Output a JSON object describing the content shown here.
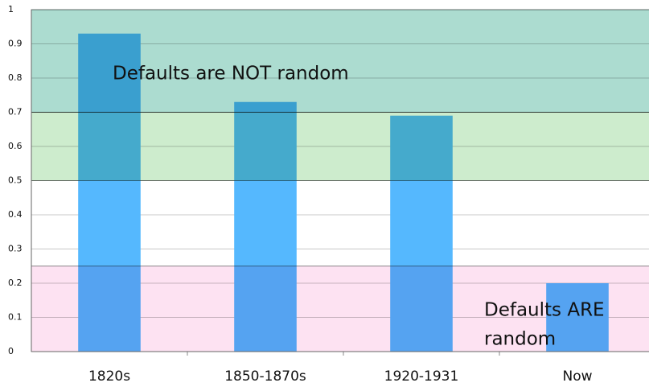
{
  "chart_data": {
    "type": "bar",
    "categories": [
      "1820s",
      "1850-1870s",
      "1920-1931",
      "Now"
    ],
    "values": [
      0.93,
      0.73,
      0.69,
      0.2
    ],
    "color": "#55b8fe",
    "ylim": [
      0,
      1
    ],
    "yticks": [
      0,
      0.1,
      0.2,
      0.3,
      0.4,
      0.5,
      0.6,
      0.7,
      0.8,
      0.9,
      1
    ],
    "grid": true,
    "bands": [
      {
        "range": [
          0.7,
          1
        ],
        "color": "#acdcd0"
      },
      {
        "range": [
          0.5,
          0.7
        ],
        "color": "#cdeccd"
      },
      {
        "range": [
          0,
          0.25
        ],
        "color": "#fde2f2"
      }
    ],
    "annotations": [
      {
        "lines": [
          "Defaults are NOT random"
        ]
      },
      {
        "lines": [
          "Defaults ARE",
          "random"
        ]
      }
    ]
  }
}
